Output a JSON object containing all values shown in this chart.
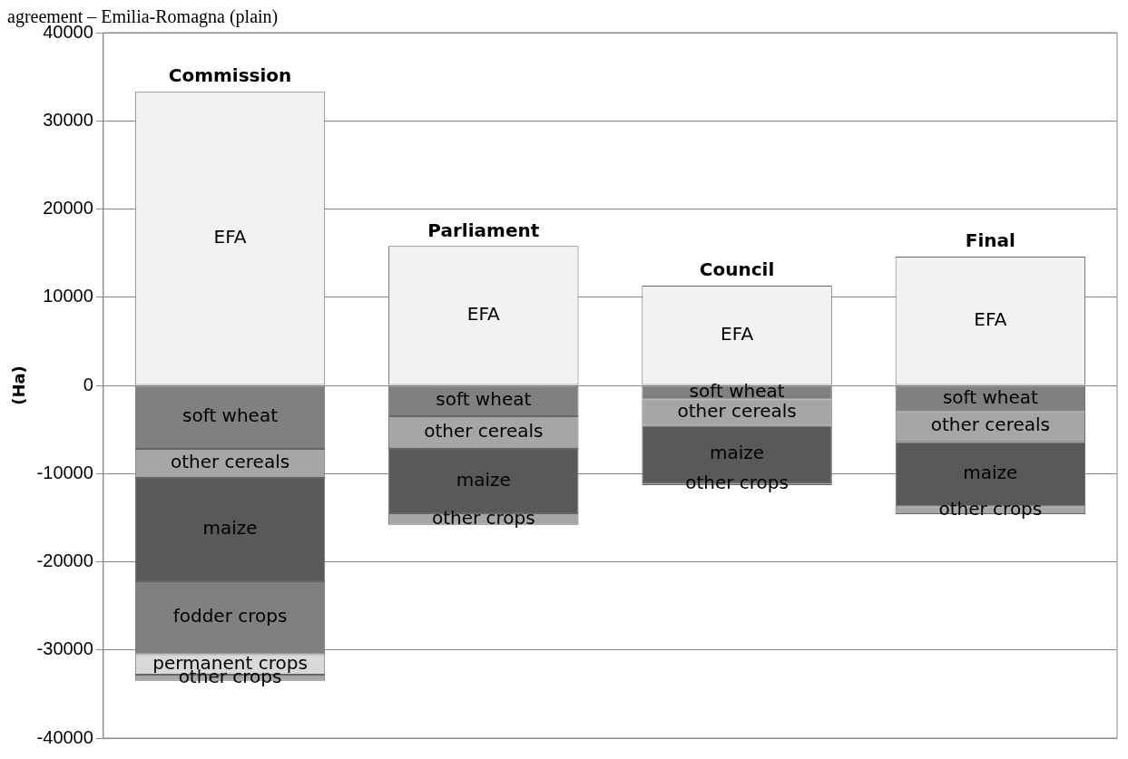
{
  "chart_data": {
    "type": "bar",
    "title": "agreement – Emilia-Romagna (plain)",
    "ylabel": "(Ha)",
    "categories": [
      "Commission",
      "Parliament",
      "Council",
      "Final"
    ],
    "stacked": true,
    "series": [
      {
        "name": "EFA",
        "color": "#f2f2f2",
        "values": [
          33300,
          15800,
          11300,
          14600
        ]
      },
      {
        "name": "soft wheat",
        "color": "#808080",
        "values": [
          -7200,
          -3500,
          -1600,
          -2900
        ]
      },
      {
        "name": "other cereals",
        "color": "#a6a6a6",
        "values": [
          -3300,
          -3700,
          -3000,
          -3500
        ]
      },
      {
        "name": "maize",
        "color": "#595959",
        "values": [
          -11700,
          -7300,
          -6400,
          -7300
        ]
      },
      {
        "name": "fodder crops",
        "color": "#808080",
        "values": [
          -8300,
          null,
          null,
          null
        ]
      },
      {
        "name": "permanent crops",
        "color": "#d9d9d9",
        "values": [
          -2300,
          null,
          null,
          null
        ]
      },
      {
        "name": "other crops",
        "color": "#a6a6a6",
        "values": [
          -700,
          -1300,
          -300,
          -900
        ]
      }
    ],
    "ylim": [
      -40000,
      40000
    ],
    "yticks": [
      -40000,
      -30000,
      -20000,
      -10000,
      0,
      10000,
      20000,
      30000,
      40000
    ],
    "grid": "y",
    "legend": false,
    "tick_labels": "y"
  }
}
